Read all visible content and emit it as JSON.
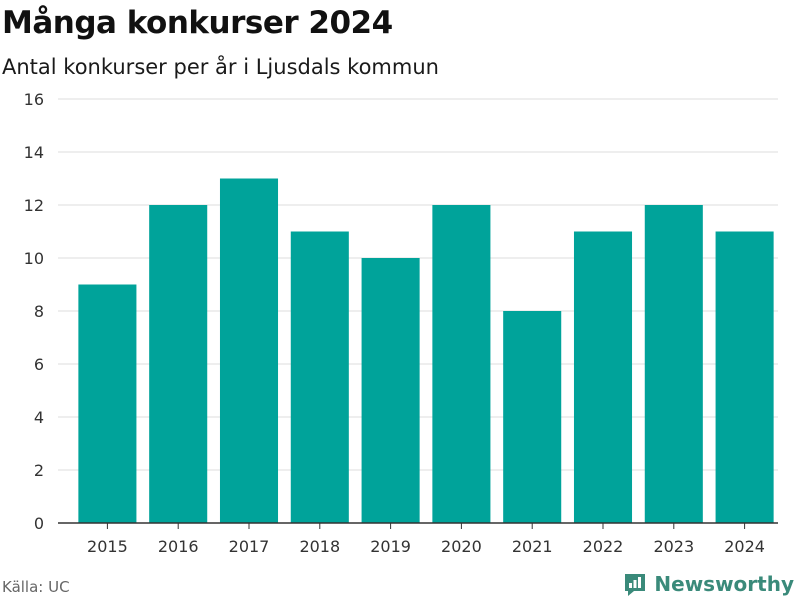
{
  "header": {
    "title": "Många konkurser 2024",
    "subtitle": "Antal konkurser per år i Ljusdals kommun"
  },
  "footer": {
    "source": "Källa: UC",
    "brand": "Newsworthy"
  },
  "colors": {
    "bar": "#00a39a",
    "grid": "#dddddd",
    "axis": "#333333",
    "brand": "#3a8a7a"
  },
  "chart_data": {
    "type": "bar",
    "categories": [
      "2015",
      "2016",
      "2017",
      "2018",
      "2019",
      "2020",
      "2021",
      "2022",
      "2023",
      "2024"
    ],
    "values": [
      9,
      12,
      13,
      11,
      10,
      12,
      8,
      11,
      12,
      11
    ],
    "title": "Många konkurser 2024",
    "subtitle": "Antal konkurser per år i Ljusdals kommun",
    "xlabel": "",
    "ylabel": "",
    "ylim": [
      0,
      16
    ],
    "yticks": [
      0,
      2,
      4,
      6,
      8,
      10,
      12,
      14,
      16
    ],
    "grid": true,
    "legend": "none"
  }
}
